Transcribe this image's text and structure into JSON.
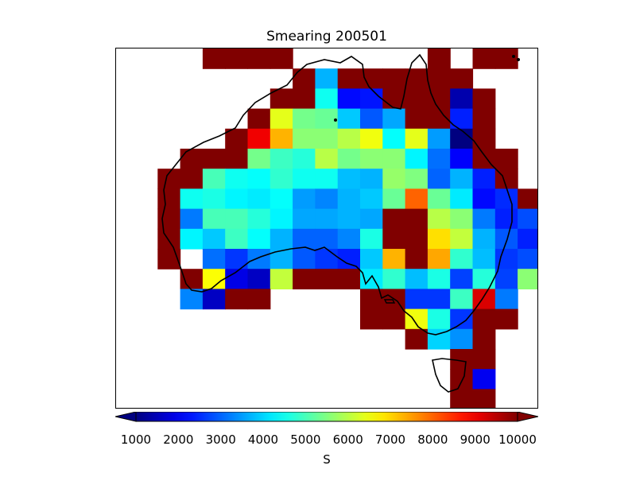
{
  "title": "Smearing 200501",
  "colorbar": {
    "label": "S",
    "ticks": [
      "1000",
      "2000",
      "3000",
      "4000",
      "5000",
      "6000",
      "7000",
      "8000",
      "9000",
      "10000"
    ],
    "min": 1000,
    "max": 10000,
    "extend": "both",
    "colormap": "jet"
  },
  "chart_data": {
    "type": "heatmap",
    "title": "Smearing 200501",
    "colorbar_label": "S",
    "value_range": [
      1000,
      10000
    ],
    "grid_note": "rows top-to-bottom, columns left-to-right over Australia; null = no data (white)",
    "cells": [
      [
        null,
        null,
        null,
        10000,
        10000,
        10000,
        10000,
        null,
        null,
        null,
        null,
        null,
        null,
        10000,
        null,
        10000,
        10000,
        null,
        null
      ],
      [
        null,
        null,
        null,
        null,
        null,
        null,
        null,
        10000,
        3700,
        10000,
        10000,
        10000,
        10000,
        10000,
        10000,
        null,
        null,
        null,
        null
      ],
      [
        null,
        null,
        null,
        null,
        null,
        null,
        10000,
        10000,
        4500,
        2200,
        2300,
        10000,
        10000,
        10000,
        1400,
        10000,
        null,
        null,
        null
      ],
      [
        null,
        null,
        null,
        null,
        null,
        10000,
        6400,
        5400,
        5300,
        3900,
        2900,
        3600,
        10000,
        10000,
        2400,
        10000,
        null,
        null,
        null
      ],
      [
        null,
        null,
        null,
        null,
        10000,
        9000,
        7300,
        5600,
        5600,
        6000,
        6500,
        4400,
        6400,
        3500,
        1000,
        10000,
        null,
        null,
        null
      ],
      [
        null,
        null,
        10000,
        10000,
        10000,
        5400,
        4900,
        4700,
        6000,
        5400,
        5600,
        5600,
        4300,
        3100,
        2100,
        10000,
        10000,
        null,
        null
      ],
      [
        null,
        10000,
        10000,
        5000,
        4500,
        4400,
        4800,
        4500,
        4500,
        3800,
        3700,
        5700,
        5500,
        3000,
        3700,
        2400,
        10000,
        null,
        null
      ],
      [
        null,
        10000,
        4500,
        4600,
        4300,
        4200,
        4400,
        3500,
        3300,
        3700,
        3900,
        5300,
        8000,
        5300,
        4200,
        2200,
        2500,
        10000,
        null
      ],
      [
        null,
        10000,
        3200,
        5000,
        5000,
        4700,
        4300,
        3600,
        3600,
        3700,
        3600,
        10000,
        10000,
        6000,
        5600,
        3200,
        2400,
        2800,
        null
      ],
      [
        null,
        10000,
        4300,
        3900,
        4900,
        4400,
        3700,
        3000,
        3000,
        3300,
        4600,
        10000,
        10000,
        6900,
        6100,
        3700,
        2900,
        2400,
        null
      ],
      [
        null,
        10000,
        null,
        3100,
        2600,
        3200,
        3700,
        2900,
        2600,
        2400,
        3900,
        7300,
        10000,
        7400,
        4800,
        3800,
        2600,
        2800,
        null
      ],
      [
        null,
        null,
        10000,
        6600,
        1900,
        1600,
        6100,
        10000,
        10000,
        10000,
        4200,
        4800,
        3800,
        4600,
        2700,
        4700,
        2700,
        5600,
        null
      ],
      [
        null,
        null,
        3300,
        1600,
        10000,
        10000,
        null,
        null,
        null,
        null,
        10000,
        10000,
        2600,
        2600,
        4900,
        9200,
        3200,
        null,
        null
      ],
      [
        null,
        null,
        null,
        null,
        null,
        null,
        null,
        null,
        null,
        null,
        10000,
        10000,
        6500,
        4600,
        2600,
        10000,
        10000,
        null,
        null
      ],
      [
        null,
        null,
        null,
        null,
        null,
        null,
        null,
        null,
        null,
        null,
        null,
        null,
        10000,
        4000,
        3400,
        10000,
        null,
        null,
        null
      ],
      [
        null,
        null,
        null,
        null,
        null,
        null,
        null,
        null,
        null,
        null,
        null,
        null,
        null,
        null,
        10000,
        10000,
        null,
        null,
        null
      ],
      [
        null,
        null,
        null,
        null,
        null,
        null,
        null,
        null,
        null,
        null,
        null,
        null,
        null,
        null,
        10000,
        2000,
        null,
        null,
        null
      ],
      [
        null,
        null,
        null,
        null,
        null,
        null,
        null,
        null,
        null,
        null,
        null,
        null,
        null,
        null,
        10000,
        10000,
        null,
        null,
        null
      ]
    ]
  }
}
